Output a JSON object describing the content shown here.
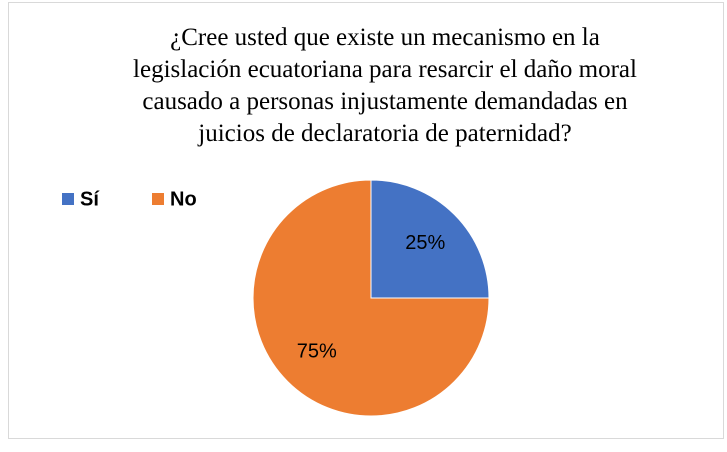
{
  "chart_data": {
    "type": "pie",
    "title": "¿Cree usted que existe un mecanismo en la legislación ecuatoriana para resarcir el daño moral causado a personas injustamente demandadas en juicios de declaratoria de paternidad?",
    "categories": [
      "Sí",
      "No"
    ],
    "values": [
      25,
      75
    ],
    "value_labels": [
      "25%",
      "75%"
    ],
    "colors": [
      "#4472c4",
      "#ed7d31"
    ],
    "legend": "top-left"
  }
}
